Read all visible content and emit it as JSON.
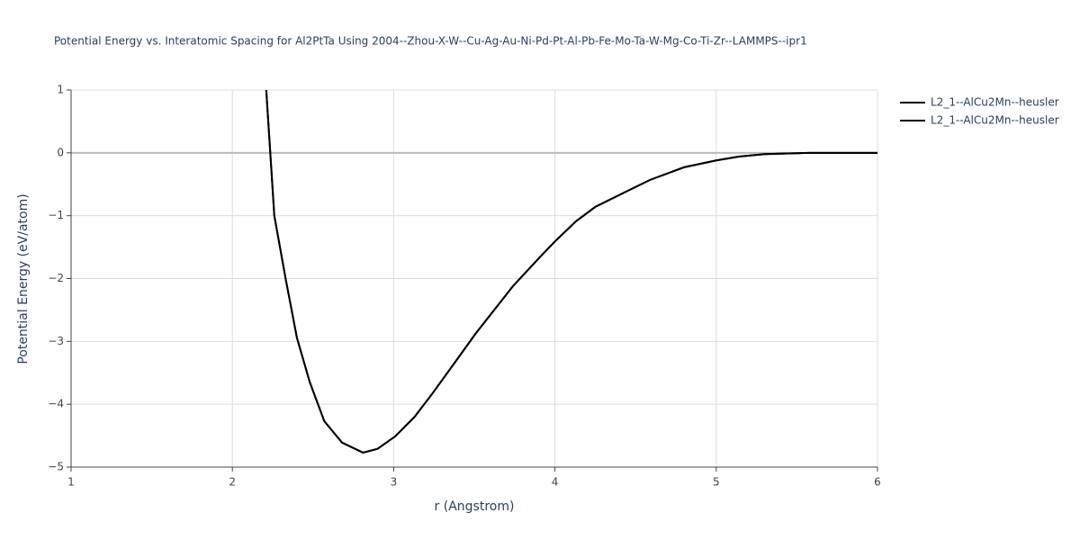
{
  "chart_data": {
    "type": "line",
    "title": "Potential Energy vs. Interatomic Spacing for Al2PtTa Using 2004--Zhou-X-W--Cu-Ag-Au-Ni-Pd-Pt-Al-Pb-Fe-Mo-Ta-W-Mg-Co-Ti-Zr--LAMMPS--ipr1",
    "x_label": "r (Angstrom)",
    "y_label": "Potential Energy (eV/atom)",
    "x": [
      2.21,
      2.26,
      2.33,
      2.4,
      2.48,
      2.57,
      2.68,
      2.81,
      2.9,
      3.01,
      3.13,
      3.24,
      3.35,
      3.51,
      3.74,
      3.91,
      4.0,
      4.13,
      4.25,
      4.47,
      4.59,
      4.8,
      5.0,
      5.14,
      5.3,
      5.58,
      6.0
    ],
    "series": [
      {
        "name": "L2_1--AlCu2Mn--heusler",
        "color": "#000000",
        "values": [
          1.0,
          -1.0,
          -2.0,
          -2.94,
          -3.65,
          -4.27,
          -4.61,
          -4.77,
          -4.71,
          -4.51,
          -4.2,
          -3.83,
          -3.44,
          -2.87,
          -2.12,
          -1.65,
          -1.41,
          -1.09,
          -0.86,
          -0.58,
          -0.43,
          -0.23,
          -0.12,
          -0.06,
          -0.02,
          0.0,
          0.0
        ]
      },
      {
        "name": "L2_1--AlCu2Mn--heusler",
        "color": "#000000",
        "values": [
          1.0,
          -1.0,
          -2.0,
          -2.94,
          -3.65,
          -4.27,
          -4.61,
          -4.77,
          -4.71,
          -4.51,
          -4.2,
          -3.83,
          -3.44,
          -2.87,
          -2.12,
          -1.65,
          -1.41,
          -1.09,
          -0.86,
          -0.58,
          -0.43,
          -0.23,
          -0.12,
          -0.06,
          -0.02,
          0.0,
          0.0
        ]
      }
    ],
    "xlim": [
      1,
      6
    ],
    "xticks": [
      1,
      2,
      3,
      4,
      5,
      6
    ],
    "ylim": [
      -5,
      1
    ],
    "yticks": [
      {
        "value": -5,
        "label": "−5"
      },
      {
        "value": -4,
        "label": "−4"
      },
      {
        "value": -3,
        "label": "−3"
      },
      {
        "value": -2,
        "label": "−2"
      },
      {
        "value": -1,
        "label": "−1"
      },
      0,
      1
    ],
    "grid": true,
    "legend": "right"
  }
}
